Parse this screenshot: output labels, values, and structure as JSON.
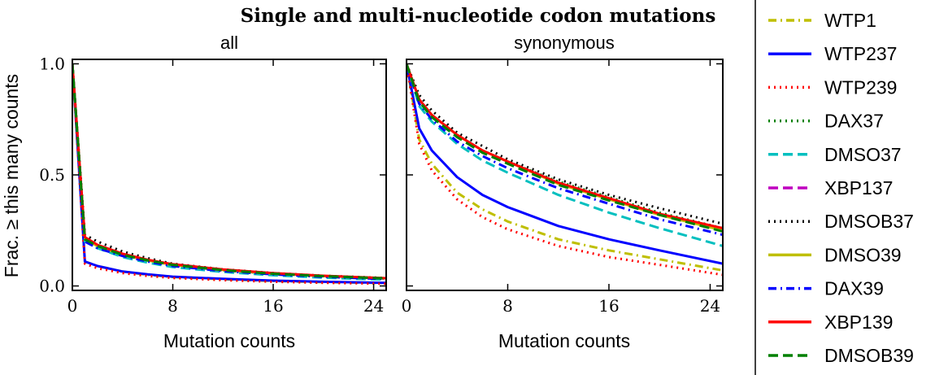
{
  "suptitle": "Single and multi-nucleotide codon mutations",
  "ylabel": "Frac. ≥ this many counts",
  "legend": [
    {
      "name": "WTP1",
      "color": "#bfbf00",
      "style": "dashdot"
    },
    {
      "name": "WTP237",
      "color": "#0000ff",
      "style": "solid"
    },
    {
      "name": "WTP239",
      "color": "#ff0000",
      "style": "dotted"
    },
    {
      "name": "DAX37",
      "color": "#008000",
      "style": "dotted"
    },
    {
      "name": "DMSO37",
      "color": "#00bfbf",
      "style": "dashed"
    },
    {
      "name": "XBP137",
      "color": "#bf00bf",
      "style": "dashed"
    },
    {
      "name": "DMSOB37",
      "color": "#000000",
      "style": "dotted"
    },
    {
      "name": "DMSO39",
      "color": "#bfbf00",
      "style": "solid"
    },
    {
      "name": "DAX39",
      "color": "#0000ff",
      "style": "dashdot"
    },
    {
      "name": "XBP139",
      "color": "#ff0000",
      "style": "solid"
    },
    {
      "name": "DMSOB39",
      "color": "#008000",
      "style": "dashed"
    }
  ],
  "chart_data": [
    {
      "type": "line",
      "title": "all",
      "xlabel": "Mutation counts",
      "ylabel": "Frac. ≥ this many counts",
      "xlim": [
        0,
        25
      ],
      "ylim": [
        -0.02,
        1.02
      ],
      "xticks": [
        "0",
        "8",
        "16",
        "24"
      ],
      "yticks": [
        "0.0",
        "0.5",
        "1.0"
      ],
      "x": [
        0,
        1,
        2,
        4,
        6,
        8,
        12,
        16,
        20,
        25
      ],
      "series": [
        {
          "name": "WTP1",
          "values": [
            1.0,
            0.11,
            0.09,
            0.065,
            0.05,
            0.04,
            0.03,
            0.022,
            0.017,
            0.013
          ]
        },
        {
          "name": "WTP237",
          "values": [
            1.0,
            0.11,
            0.09,
            0.065,
            0.052,
            0.042,
            0.032,
            0.024,
            0.019,
            0.014
          ]
        },
        {
          "name": "WTP239",
          "values": [
            1.0,
            0.1,
            0.08,
            0.058,
            0.045,
            0.036,
            0.026,
            0.019,
            0.014,
            0.01
          ]
        },
        {
          "name": "DAX37",
          "values": [
            1.0,
            0.21,
            0.18,
            0.14,
            0.115,
            0.095,
            0.07,
            0.055,
            0.043,
            0.033
          ]
        },
        {
          "name": "DMSO37",
          "values": [
            1.0,
            0.2,
            0.17,
            0.13,
            0.105,
            0.085,
            0.063,
            0.048,
            0.037,
            0.028
          ]
        },
        {
          "name": "XBP137",
          "values": [
            1.0,
            0.21,
            0.18,
            0.14,
            0.115,
            0.095,
            0.07,
            0.055,
            0.044,
            0.034
          ]
        },
        {
          "name": "DMSOB37",
          "values": [
            1.0,
            0.23,
            0.2,
            0.155,
            0.125,
            0.1,
            0.075,
            0.058,
            0.046,
            0.036
          ]
        },
        {
          "name": "DMSO39",
          "values": [
            1.0,
            0.21,
            0.18,
            0.14,
            0.115,
            0.095,
            0.072,
            0.056,
            0.045,
            0.035
          ]
        },
        {
          "name": "DAX39",
          "values": [
            1.0,
            0.2,
            0.17,
            0.135,
            0.11,
            0.09,
            0.067,
            0.052,
            0.041,
            0.031
          ]
        },
        {
          "name": "XBP139",
          "values": [
            1.0,
            0.22,
            0.185,
            0.145,
            0.118,
            0.098,
            0.074,
            0.058,
            0.046,
            0.035
          ]
        },
        {
          "name": "DMSOB39",
          "values": [
            1.0,
            0.21,
            0.18,
            0.14,
            0.115,
            0.095,
            0.071,
            0.055,
            0.044,
            0.034
          ]
        }
      ]
    },
    {
      "type": "line",
      "title": "synonymous",
      "xlabel": "Mutation counts",
      "xlim": [
        0,
        25
      ],
      "ylim": [
        -0.02,
        1.02
      ],
      "xticks": [
        "0",
        "8",
        "16",
        "24"
      ],
      "yticks": [],
      "x": [
        0,
        1,
        2,
        4,
        6,
        8,
        12,
        16,
        20,
        25
      ],
      "series": [
        {
          "name": "WTP1",
          "values": [
            1.0,
            0.66,
            0.55,
            0.42,
            0.345,
            0.29,
            0.21,
            0.16,
            0.12,
            0.07
          ]
        },
        {
          "name": "WTP237",
          "values": [
            1.0,
            0.71,
            0.61,
            0.49,
            0.41,
            0.355,
            0.27,
            0.21,
            0.16,
            0.1
          ]
        },
        {
          "name": "WTP239",
          "values": [
            1.0,
            0.64,
            0.52,
            0.39,
            0.31,
            0.255,
            0.18,
            0.13,
            0.095,
            0.05
          ]
        },
        {
          "name": "DAX37",
          "values": [
            1.0,
            0.84,
            0.77,
            0.68,
            0.61,
            0.56,
            0.47,
            0.4,
            0.33,
            0.26
          ]
        },
        {
          "name": "DMSO37",
          "values": [
            1.0,
            0.81,
            0.74,
            0.64,
            0.565,
            0.51,
            0.41,
            0.33,
            0.26,
            0.18
          ]
        },
        {
          "name": "XBP137",
          "values": [
            1.0,
            0.84,
            0.77,
            0.68,
            0.61,
            0.56,
            0.46,
            0.39,
            0.32,
            0.25
          ]
        },
        {
          "name": "DMSOB37",
          "values": [
            1.0,
            0.86,
            0.79,
            0.69,
            0.63,
            0.57,
            0.48,
            0.41,
            0.35,
            0.28
          ]
        },
        {
          "name": "DMSO39",
          "values": [
            1.0,
            0.84,
            0.77,
            0.68,
            0.61,
            0.56,
            0.46,
            0.39,
            0.32,
            0.25
          ]
        },
        {
          "name": "DAX39",
          "values": [
            1.0,
            0.82,
            0.75,
            0.65,
            0.585,
            0.53,
            0.44,
            0.37,
            0.3,
            0.23
          ]
        },
        {
          "name": "XBP139",
          "values": [
            1.0,
            0.84,
            0.77,
            0.68,
            0.61,
            0.56,
            0.465,
            0.395,
            0.325,
            0.26
          ]
        },
        {
          "name": "DMSOB39",
          "values": [
            1.0,
            0.83,
            0.76,
            0.67,
            0.6,
            0.55,
            0.455,
            0.385,
            0.32,
            0.245
          ]
        }
      ]
    }
  ]
}
